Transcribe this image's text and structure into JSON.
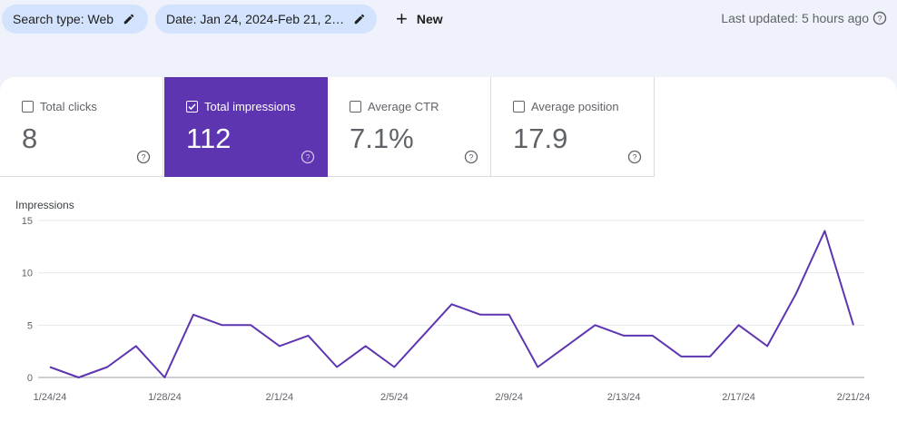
{
  "filters": {
    "search_type": "Search type: Web",
    "date": "Date: Jan 24, 2024-Feb 21, 2…",
    "new_label": "New"
  },
  "last_updated": "Last updated: 5 hours ago",
  "metrics": [
    {
      "label": "Total clicks",
      "value": "8",
      "checked": false
    },
    {
      "label": "Total impressions",
      "value": "112",
      "checked": true
    },
    {
      "label": "Average CTR",
      "value": "7.1%",
      "checked": false
    },
    {
      "label": "Average position",
      "value": "17.9",
      "checked": false
    }
  ],
  "colors": {
    "accent": "#5e35b1",
    "chip": "#d3e3fd",
    "line": "#5e35b1"
  },
  "chart_data": {
    "type": "line",
    "ylabel": "Impressions",
    "ylim": [
      0,
      15
    ],
    "yticks": [
      0,
      5,
      10,
      15
    ],
    "x_tick_labels": [
      "1/24/24",
      "1/28/24",
      "2/1/24",
      "2/5/24",
      "2/9/24",
      "2/13/24",
      "2/17/24",
      "2/21/24"
    ],
    "x": [
      "1/24/24",
      "1/25/24",
      "1/26/24",
      "1/27/24",
      "1/28/24",
      "1/29/24",
      "1/30/24",
      "1/31/24",
      "2/1/24",
      "2/2/24",
      "2/3/24",
      "2/4/24",
      "2/5/24",
      "2/6/24",
      "2/7/24",
      "2/8/24",
      "2/9/24",
      "2/10/24",
      "2/11/24",
      "2/12/24",
      "2/13/24",
      "2/14/24",
      "2/15/24",
      "2/16/24",
      "2/17/24",
      "2/18/24",
      "2/19/24",
      "2/20/24",
      "2/21/24"
    ],
    "series": [
      {
        "values": [
          1,
          0,
          1,
          3,
          0,
          6,
          5,
          5,
          3,
          4,
          1,
          3,
          1,
          4,
          7,
          6,
          6,
          1,
          3,
          5,
          4,
          4,
          2,
          2,
          5,
          3,
          8,
          14,
          5
        ]
      }
    ],
    "grid": true
  }
}
